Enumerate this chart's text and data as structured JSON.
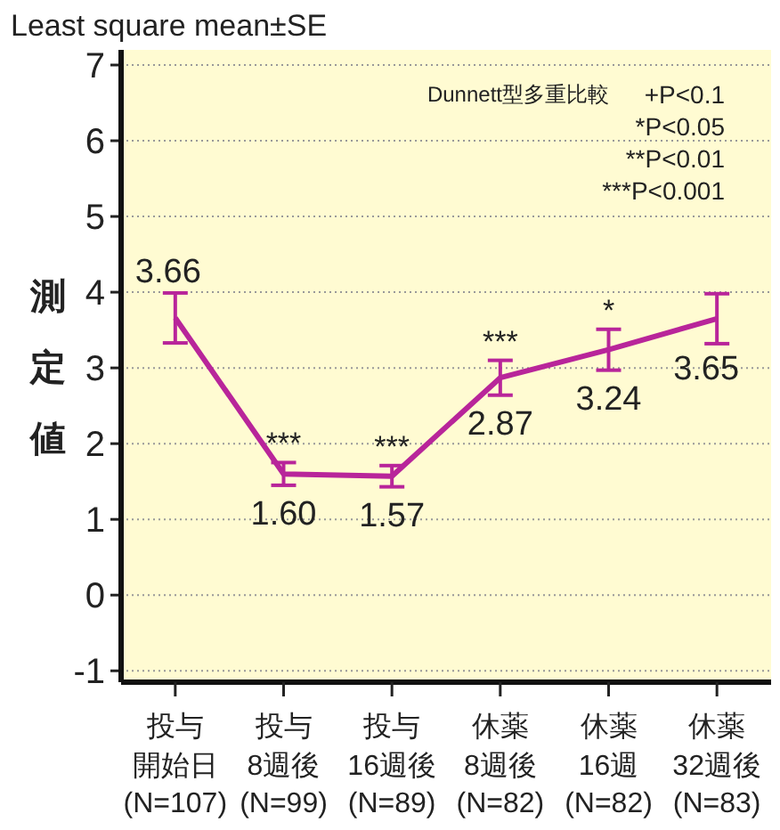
{
  "chart_data": {
    "type": "line",
    "title": "Least square mean±SE",
    "ylabel": "測定値",
    "categories": [
      "投与開始日(N=107)",
      "投与8週後(N=99)",
      "投与16週後(N=89)",
      "休薬8週後(N=82)",
      "休薬16週(N=82)",
      "休薬32週後(N=83)"
    ],
    "series": [
      {
        "color": "#b8259a",
        "values": [
          3.66,
          1.6,
          1.57,
          2.87,
          3.24,
          3.65
        ],
        "errors": [
          0.33,
          0.15,
          0.14,
          0.23,
          0.27,
          0.33
        ],
        "value_labels": [
          "3.66",
          "1.60",
          "1.57",
          "2.87",
          "3.24",
          "3.65"
        ]
      }
    ],
    "ylim": [
      -1.15,
      7.2
    ],
    "yticks": [
      -1,
      0,
      1,
      2,
      3,
      4,
      5,
      6,
      7
    ],
    "grid": "y",
    "marker": "none",
    "line_style": "solid",
    "annotations": [
      {
        "text": "***",
        "x": "投与8週後(N=99)",
        "y": 1.6
      },
      {
        "text": "***",
        "x": "投与16週後(N=89)",
        "y": 1.57
      },
      {
        "text": "***",
        "x": "休薬8週後(N=82)",
        "y": 2.87
      },
      {
        "text": "*",
        "x": "休薬16週(N=82)",
        "y": 3.24
      },
      "Dunnett型多重比較",
      "+P<0.1",
      "*P<0.05",
      "**P<0.01",
      "***P<0.001"
    ]
  }
}
